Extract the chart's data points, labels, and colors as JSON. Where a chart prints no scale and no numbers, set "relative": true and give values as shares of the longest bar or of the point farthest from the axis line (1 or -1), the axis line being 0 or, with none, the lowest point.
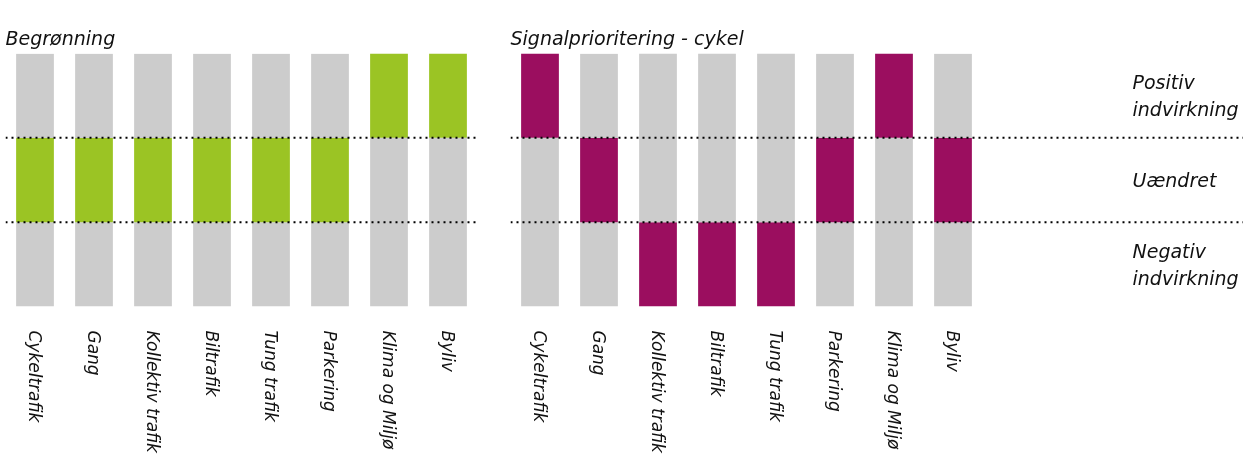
{
  "chart_data": [
    {
      "type": "bar",
      "title": "Begrønning",
      "categories": [
        "Cykeltrafik",
        "Gang",
        "Kollektiv trafik",
        "Biltrafik",
        "Tung trafik",
        "Parkering",
        "Klima og Miljø",
        "Byliv"
      ],
      "stacked": true,
      "relative": true,
      "series": [
        {
          "color": "#cccccc",
          "values": [
            0.333,
            0.333,
            0.333,
            0.333,
            0.333,
            0.333,
            0.667,
            0.667
          ]
        },
        {
          "color": "#9bc424",
          "values": [
            0.333,
            0.333,
            0.333,
            0.333,
            0.333,
            0.333,
            0.333,
            0.333
          ]
        },
        {
          "color": "#cccccc",
          "values": [
            0.333,
            0.333,
            0.333,
            0.333,
            0.333,
            0.333,
            0,
            0
          ]
        }
      ],
      "ref_lines": [
        {
          "axis": "y",
          "value": 0.333,
          "color": "#000000",
          "line_style": "dotted"
        },
        {
          "axis": "y",
          "value": 0.667,
          "color": "#000000",
          "line_style": "dotted"
        }
      ]
    },
    {
      "type": "bar",
      "title": "Signalprioritering - cykel",
      "categories": [
        "Cykeltrafik",
        "Gang",
        "Kollektiv trafik",
        "Biltrafik",
        "Tung trafik",
        "Parkering",
        "Klima og Miljø",
        "Byliv"
      ],
      "stacked": true,
      "relative": true,
      "series": [
        {
          "color": "#cccccc",
          "values": [
            0.667,
            0.333,
            0,
            0,
            0,
            0.333,
            0.667,
            0.333
          ]
        },
        {
          "color": "#9b0e5f",
          "values": [
            0.333,
            0.333,
            0.333,
            0.333,
            0.333,
            0.333,
            0.333,
            0.333
          ]
        },
        {
          "color": "#cccccc",
          "values": [
            0,
            0.333,
            0.667,
            0.667,
            0.667,
            0.333,
            0,
            0.333
          ]
        }
      ],
      "ref_lines": [
        {
          "axis": "y",
          "value": 0.333,
          "color": "#000000",
          "line_style": "dotted"
        },
        {
          "axis": "y",
          "value": 0.667,
          "color": "#000000",
          "line_style": "dotted"
        }
      ],
      "annotations": [
        "Positiv indvirkning",
        "Uændret",
        "Negativ indvirkning"
      ]
    }
  ]
}
